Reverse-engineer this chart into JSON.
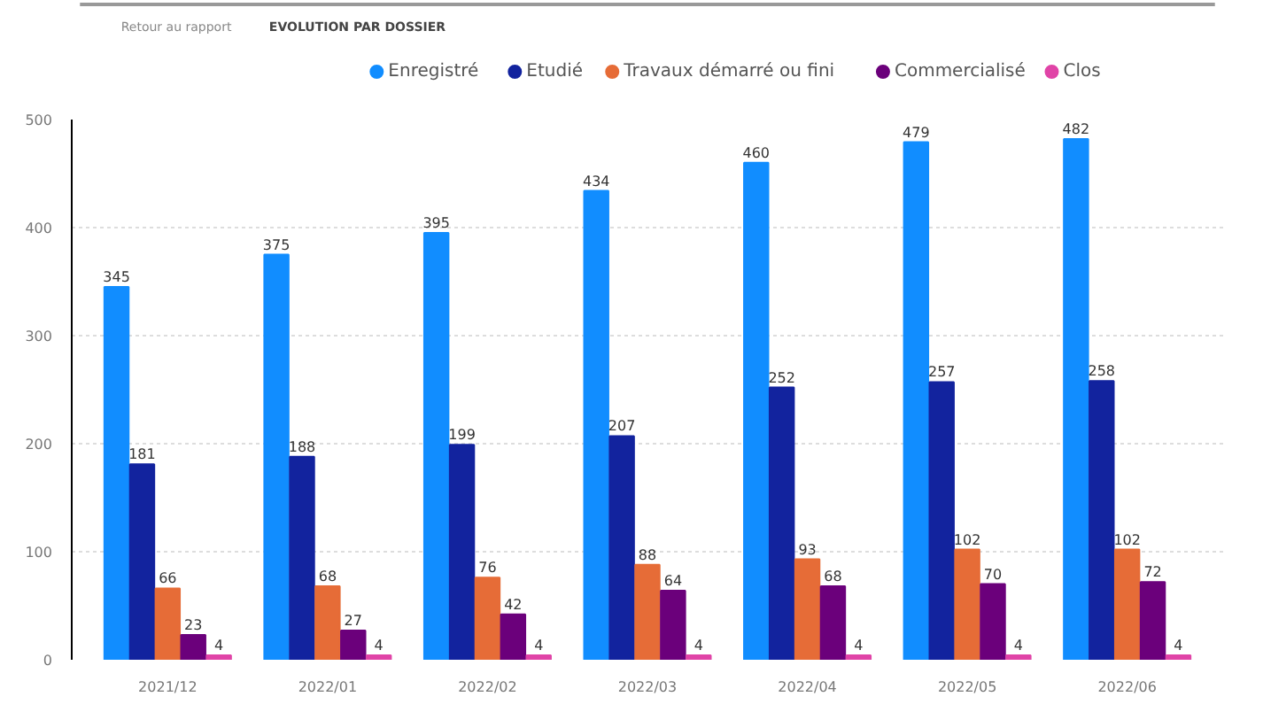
{
  "chart_data": {
    "type": "bar",
    "title": "EVOLUTION PAR DOSSIER",
    "annotations": [
      "Retour au rapport"
    ],
    "categories": [
      "2021/12",
      "2022/01",
      "2022/02",
      "2022/03",
      "2022/04",
      "2022/05",
      "2022/06"
    ],
    "series": [
      {
        "name": "Enregistré",
        "color": "#118dff",
        "values": [
          345,
          375,
          395,
          434,
          460,
          479,
          482
        ]
      },
      {
        "name": "Etudié",
        "color": "#12239e",
        "values": [
          181,
          188,
          199,
          207,
          252,
          257,
          258
        ]
      },
      {
        "name": "Travaux démarré ou fini",
        "color": "#e66c37",
        "values": [
          66,
          68,
          76,
          88,
          93,
          102,
          102
        ]
      },
      {
        "name": "Commercialisé",
        "color": "#6b007b",
        "values": [
          23,
          27,
          42,
          64,
          68,
          70,
          72
        ]
      },
      {
        "name": "Clos",
        "color": "#e044a7",
        "values": [
          4,
          4,
          4,
          4,
          4,
          4,
          4
        ]
      }
    ],
    "ylim": [
      0,
      500
    ],
    "yticks": [
      0,
      100,
      200,
      300,
      400,
      500
    ],
    "grid": "y",
    "legend": "top",
    "data_labels": true
  }
}
